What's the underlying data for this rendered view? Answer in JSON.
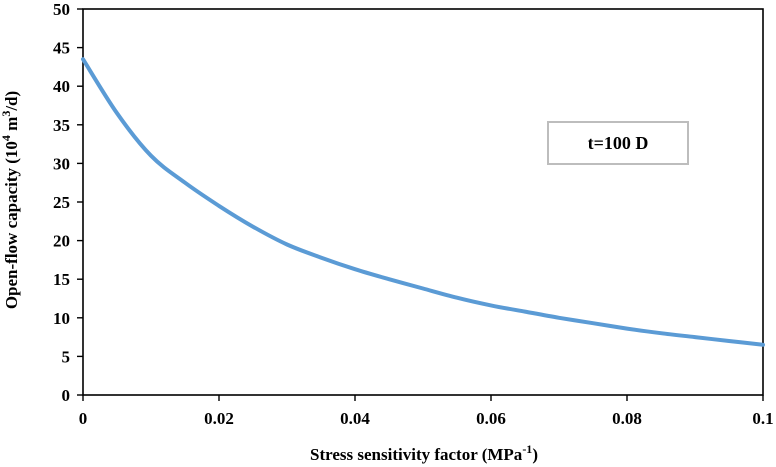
{
  "chart_data": {
    "type": "line",
    "xlabel": {
      "main": "Stress sensitivity factor (MPa",
      "sup": "-1",
      "end": ")"
    },
    "ylabel": {
      "main": "Open-flow capacity  (10",
      "sup1": "4",
      "mid": " m",
      "sup2": "3",
      "end": "/d)"
    },
    "xlim": [
      0,
      0.1
    ],
    "ylim": [
      0,
      50
    ],
    "x_ticks": [
      "0",
      "0.02",
      "0.04",
      "0.06",
      "0.08",
      "0.1"
    ],
    "x_tick_values": [
      0,
      0.02,
      0.04,
      0.06,
      0.08,
      0.1
    ],
    "y_ticks": [
      "0",
      "5",
      "10",
      "15",
      "20",
      "25",
      "30",
      "35",
      "40",
      "45",
      "50"
    ],
    "y_tick_values": [
      0,
      5,
      10,
      15,
      20,
      25,
      30,
      35,
      40,
      45,
      50
    ],
    "grid": false,
    "annotation": "t=100 D",
    "series": [
      {
        "name": "t=100 D",
        "color": "#5b9bd5",
        "x": [
          0,
          0.005,
          0.01,
          0.015,
          0.02,
          0.025,
          0.03,
          0.035,
          0.04,
          0.045,
          0.05,
          0.055,
          0.06,
          0.065,
          0.07,
          0.075,
          0.08,
          0.085,
          0.09,
          0.095,
          0.1
        ],
        "y": [
          43.5,
          36.5,
          31.0,
          27.5,
          24.5,
          21.8,
          19.5,
          17.8,
          16.3,
          15.0,
          13.8,
          12.6,
          11.6,
          10.8,
          10.0,
          9.3,
          8.6,
          8.0,
          7.5,
          7.0,
          6.5
        ]
      }
    ]
  }
}
